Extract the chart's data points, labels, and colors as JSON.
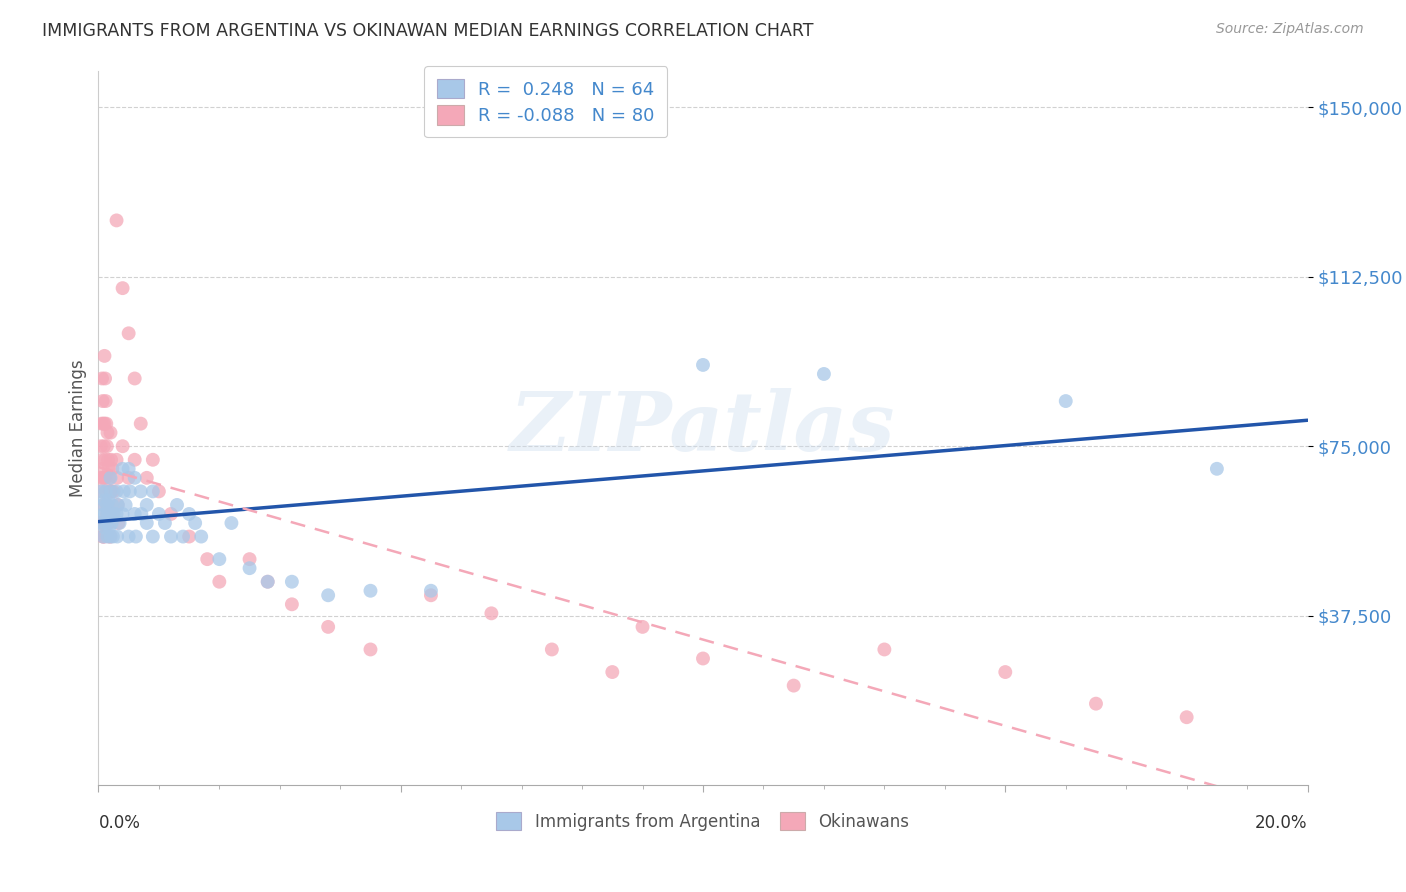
{
  "title": "IMMIGRANTS FROM ARGENTINA VS OKINAWAN MEDIAN EARNINGS CORRELATION CHART",
  "source": "Source: ZipAtlas.com",
  "ylabel": "Median Earnings",
  "xlim": [
    0.0,
    0.2
  ],
  "ylim": [
    0,
    158000
  ],
  "legend_color1": "#a8c8e8",
  "legend_color2": "#f4a8b8",
  "argentina_color": "#a8c8e8",
  "okinawa_color": "#f4a8b8",
  "argentina_line_color": "#2255aa",
  "okinawa_line_color": "#f4a8b8",
  "watermark_text": "ZIPatlas",
  "argentina_x": [
    0.0005,
    0.0006,
    0.0007,
    0.0008,
    0.0009,
    0.001,
    0.001,
    0.0011,
    0.0012,
    0.0013,
    0.0014,
    0.0015,
    0.0016,
    0.0017,
    0.0018,
    0.0019,
    0.002,
    0.002,
    0.0021,
    0.0022,
    0.0023,
    0.0024,
    0.0025,
    0.003,
    0.003,
    0.0031,
    0.0032,
    0.0035,
    0.004,
    0.004,
    0.0042,
    0.0045,
    0.005,
    0.005,
    0.0052,
    0.006,
    0.006,
    0.0062,
    0.007,
    0.0071,
    0.008,
    0.008,
    0.009,
    0.009,
    0.01,
    0.011,
    0.012,
    0.013,
    0.014,
    0.015,
    0.016,
    0.017,
    0.02,
    0.022,
    0.025,
    0.028,
    0.032,
    0.038,
    0.045,
    0.055,
    0.1,
    0.12,
    0.16,
    0.185
  ],
  "argentina_y": [
    65000,
    58000,
    62000,
    55000,
    60000,
    63000,
    57000,
    60000,
    65000,
    58000,
    62000,
    55000,
    60000,
    63000,
    57000,
    60000,
    68000,
    55000,
    65000,
    58000,
    62000,
    55000,
    60000,
    65000,
    60000,
    55000,
    62000,
    58000,
    70000,
    60000,
    65000,
    62000,
    70000,
    55000,
    65000,
    60000,
    68000,
    55000,
    65000,
    60000,
    58000,
    62000,
    55000,
    65000,
    60000,
    58000,
    55000,
    62000,
    55000,
    60000,
    58000,
    55000,
    50000,
    58000,
    48000,
    45000,
    45000,
    42000,
    43000,
    43000,
    93000,
    91000,
    85000,
    70000
  ],
  "okinawa_x": [
    0.0003,
    0.0004,
    0.0004,
    0.0005,
    0.0005,
    0.0006,
    0.0006,
    0.0006,
    0.0007,
    0.0007,
    0.0007,
    0.0008,
    0.0008,
    0.0008,
    0.0009,
    0.0009,
    0.001,
    0.001,
    0.001,
    0.001,
    0.0011,
    0.0011,
    0.0012,
    0.0012,
    0.0013,
    0.0013,
    0.0014,
    0.0014,
    0.0015,
    0.0015,
    0.0016,
    0.0016,
    0.0017,
    0.0017,
    0.0018,
    0.0018,
    0.0019,
    0.002,
    0.002,
    0.002,
    0.0021,
    0.0022,
    0.0023,
    0.0024,
    0.0025,
    0.003,
    0.003,
    0.0031,
    0.0032,
    0.0033,
    0.004,
    0.004,
    0.005,
    0.005,
    0.006,
    0.006,
    0.007,
    0.008,
    0.009,
    0.01,
    0.012,
    0.015,
    0.018,
    0.02,
    0.025,
    0.028,
    0.032,
    0.038,
    0.045,
    0.055,
    0.065,
    0.075,
    0.085,
    0.09,
    0.1,
    0.115,
    0.13,
    0.15,
    0.165,
    0.18
  ],
  "okinawa_y": [
    68000,
    75000,
    58000,
    80000,
    65000,
    90000,
    72000,
    58000,
    85000,
    70000,
    55000,
    80000,
    68000,
    55000,
    75000,
    62000,
    95000,
    80000,
    68000,
    55000,
    90000,
    72000,
    85000,
    68000,
    80000,
    65000,
    75000,
    60000,
    78000,
    62000,
    72000,
    58000,
    70000,
    58000,
    68000,
    55000,
    65000,
    78000,
    65000,
    55000,
    72000,
    65000,
    70000,
    60000,
    65000,
    125000,
    72000,
    68000,
    62000,
    58000,
    110000,
    75000,
    100000,
    68000,
    90000,
    72000,
    80000,
    68000,
    72000,
    65000,
    60000,
    55000,
    50000,
    45000,
    50000,
    45000,
    40000,
    35000,
    30000,
    42000,
    38000,
    30000,
    25000,
    35000,
    28000,
    22000,
    30000,
    25000,
    18000,
    15000
  ],
  "ytick_vals": [
    37500,
    75000,
    112500,
    150000
  ],
  "ytick_labels": [
    "$37,500",
    "$75,000",
    "$112,500",
    "$150,000"
  ]
}
